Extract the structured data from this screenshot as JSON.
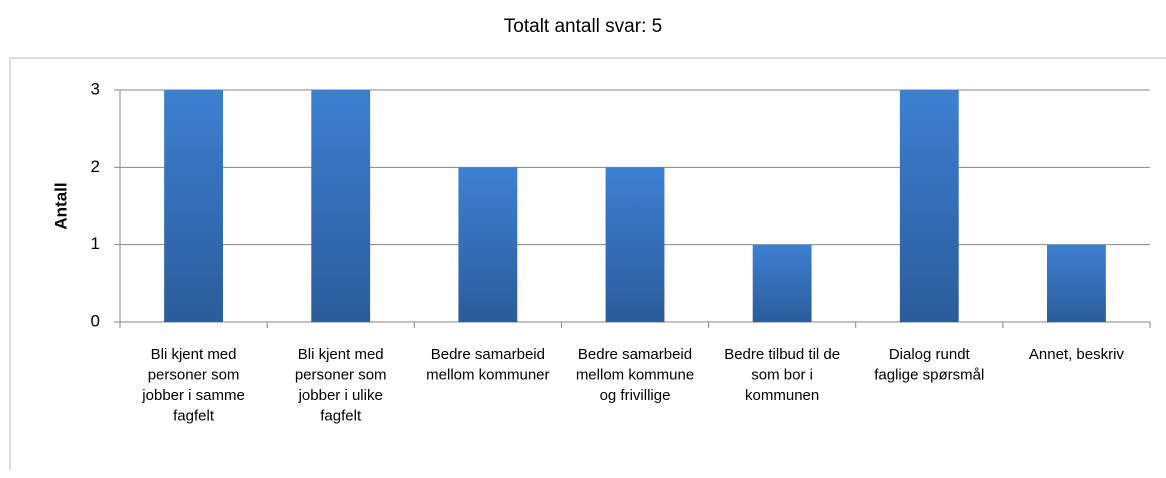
{
  "chart_data": {
    "type": "bar",
    "title": "Totalt antall svar: 5",
    "y_label": "Antall",
    "categories": [
      "Bli kjent med personer som jobber i samme fagfelt",
      "Bli kjent med personer som jobber i ulike fagfelt",
      "Bedre samarbeid mellom kommuner",
      "Bedre samarbeid mellom kommune og frivillige",
      "Bedre tilbud til de som bor i kommunen",
      "Dialog rundt faglige spørsmål",
      "Annet, beskriv"
    ],
    "values": [
      3,
      3,
      2,
      2,
      1,
      3,
      1
    ],
    "color": "#3a78c8",
    "ylim": [
      0,
      3
    ],
    "yticks": [
      0,
      1,
      2,
      3
    ],
    "grid": true
  }
}
